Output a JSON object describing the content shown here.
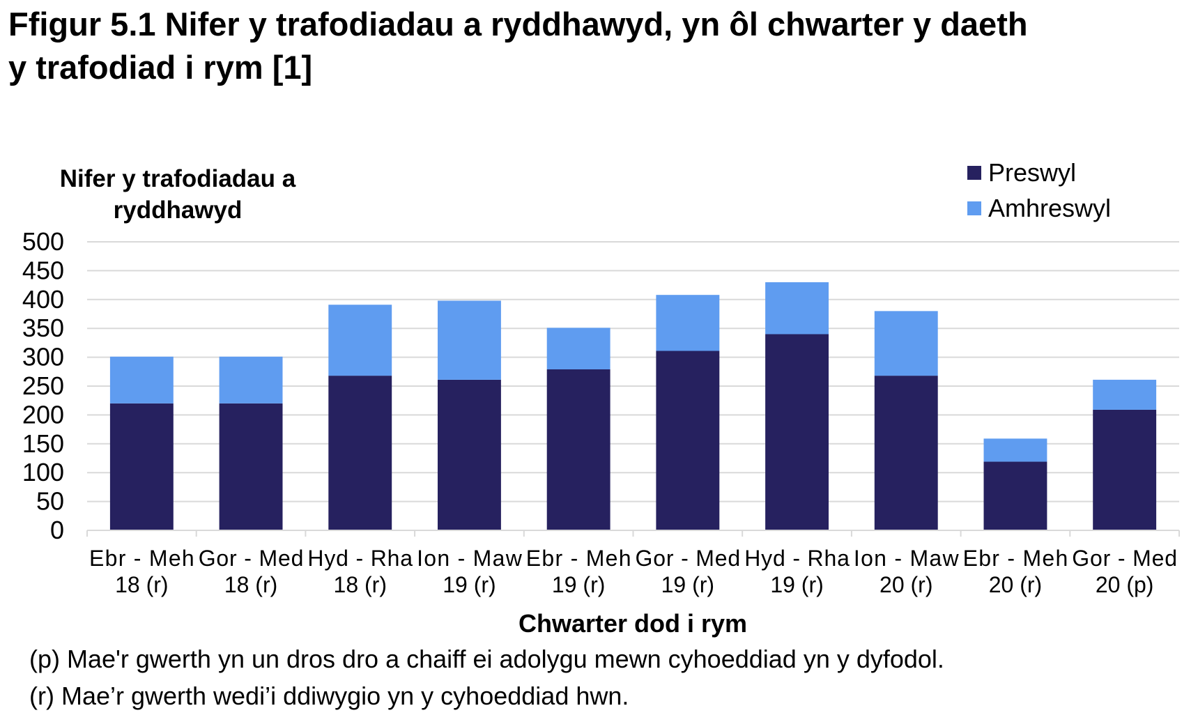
{
  "figure": {
    "title_line1": "Ffigur 5.1  Nifer y trafodiadau a ryddhawyd, yn ôl chwarter y daeth",
    "title_line2": "y trafodiad i rym [1]"
  },
  "footnotes": [
    "(p) Mae'r gwerth yn un dros dro a chaiff ei adolygu mewn cyhoeddiad yn y dyfodol.",
    "(r) Mae’r gwerth wedi’i ddiwygio yn y cyhoeddiad hwn."
  ],
  "chart_data": {
    "type": "bar",
    "stacked": true,
    "ylabel_lines": [
      "Nifer y trafodiadau a",
      "ryddhawyd"
    ],
    "xlabel": "Chwarter dod i rym",
    "ylim": [
      0,
      500
    ],
    "yticks": [
      0,
      50,
      100,
      150,
      200,
      250,
      300,
      350,
      400,
      450,
      500
    ],
    "grid": true,
    "legend_position": "top-right",
    "categories": [
      [
        "Ebr - Meh",
        "18 (r)"
      ],
      [
        "Gor - Med",
        "18 (r)"
      ],
      [
        "Hyd - Rha",
        "18 (r)"
      ],
      [
        "Ion - Maw",
        "19 (r)"
      ],
      [
        "Ebr - Meh",
        "19 (r)"
      ],
      [
        "Gor - Med",
        "19 (r)"
      ],
      [
        "Hyd - Rha",
        "19 (r)"
      ],
      [
        "Ion - Maw",
        "20 (r)"
      ],
      [
        "Ebr - Meh",
        "20 (r)"
      ],
      [
        "Gor - Med",
        "20 (p)"
      ]
    ],
    "series": [
      {
        "name": "Preswyl",
        "color": "#26215f",
        "values": [
          220,
          220,
          268,
          261,
          279,
          311,
          340,
          268,
          119,
          209
        ]
      },
      {
        "name": "Amhreswyl",
        "color": "#5f9cf0",
        "values": [
          81,
          81,
          123,
          137,
          72,
          97,
          90,
          112,
          40,
          52
        ]
      }
    ]
  }
}
